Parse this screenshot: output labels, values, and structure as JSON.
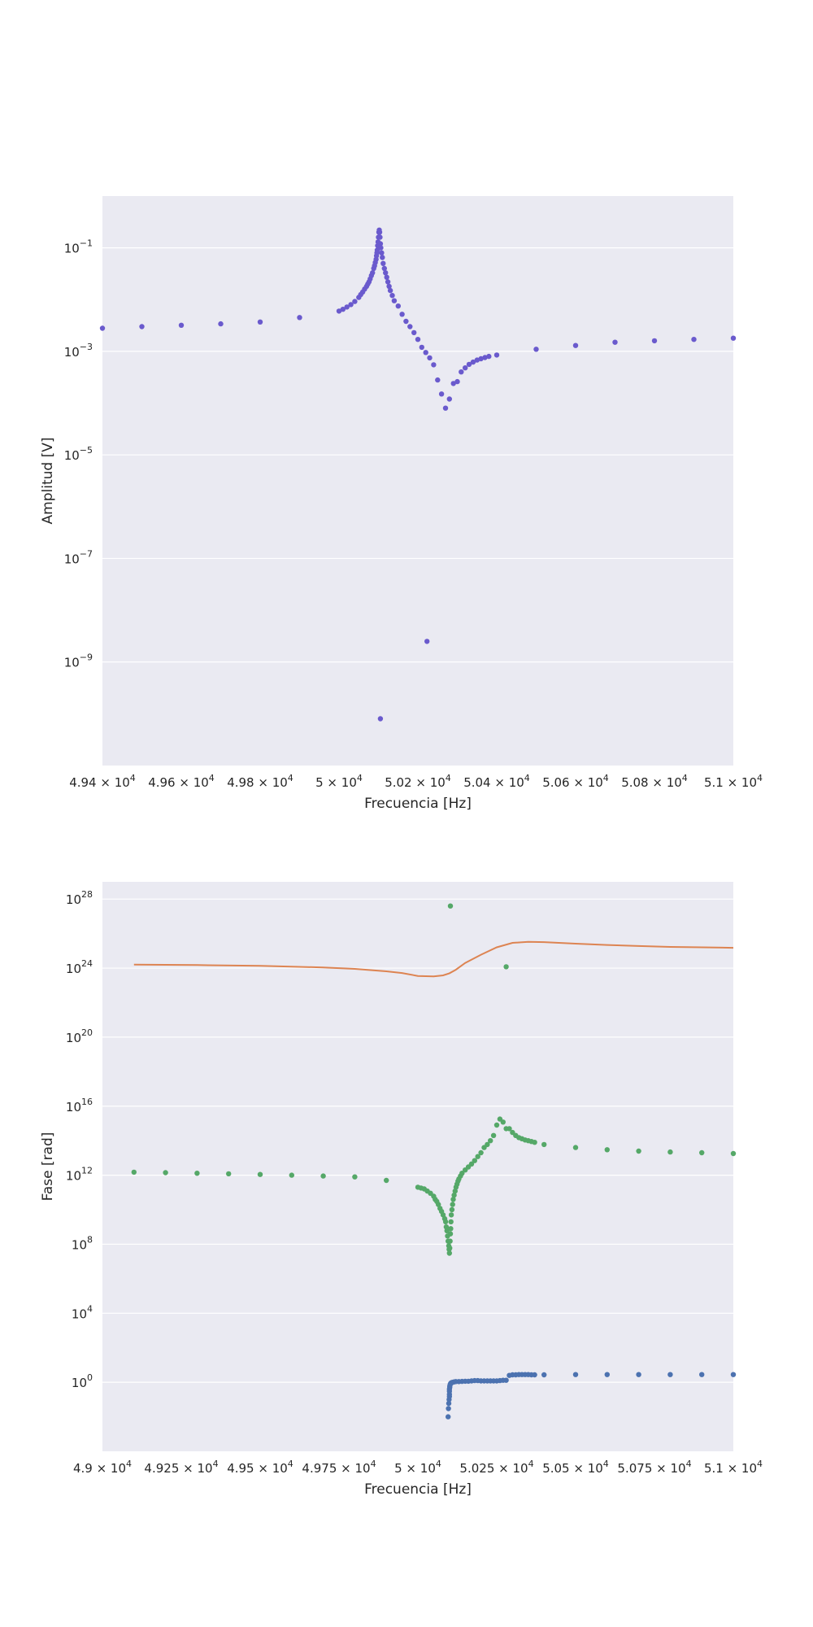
{
  "chart_data": [
    {
      "type": "scatter",
      "xlabel": "Frecuencia [Hz]",
      "ylabel": "Amplitud [V]",
      "xlim": [
        49400,
        51000
      ],
      "y_scale": "log",
      "ylim": [
        1e-11,
        1
      ],
      "grid": true,
      "colors": {
        "plot_bg": "#eaeaf2",
        "grid": "#ffffff",
        "points": "#6a5acd"
      },
      "x_ticks": [
        {
          "value": 49400,
          "mant": "4.94",
          "exp": "4"
        },
        {
          "value": 49600,
          "mant": "4.96",
          "exp": "4"
        },
        {
          "value": 49800,
          "mant": "4.98",
          "exp": "4"
        },
        {
          "value": 50000,
          "mant": "5",
          "exp": "4"
        },
        {
          "value": 50200,
          "mant": "5.02",
          "exp": "4"
        },
        {
          "value": 50400,
          "mant": "5.04",
          "exp": "4"
        },
        {
          "value": 50600,
          "mant": "5.06",
          "exp": "4"
        },
        {
          "value": 50800,
          "mant": "5.08",
          "exp": "4"
        },
        {
          "value": 51000,
          "mant": "5.1",
          "exp": "4"
        }
      ],
      "y_ticks": [
        {
          "value": 0.1,
          "base": "10",
          "exp": "−1"
        },
        {
          "value": 0.001,
          "base": "10",
          "exp": "−3"
        },
        {
          "value": 1e-05,
          "base": "10",
          "exp": "−5"
        },
        {
          "value": 1e-07,
          "base": "10",
          "exp": "−7"
        },
        {
          "value": 1e-09,
          "base": "10",
          "exp": "−9"
        }
      ],
      "series": [
        {
          "color": "#6a5acd",
          "x": [
            49400,
            49500,
            49600,
            49700,
            49800,
            49900,
            50000,
            50010,
            50020,
            50030,
            50040,
            50050,
            50055,
            50060,
            50065,
            50070,
            50073,
            50076,
            50079,
            50082,
            50085,
            50088,
            50090,
            50092,
            50094,
            50095,
            50096,
            50097,
            50098,
            50099,
            50100,
            50101,
            50102,
            50103,
            50104,
            50105,
            50106,
            50108,
            50110,
            50112,
            50115,
            50118,
            50121,
            50124,
            50127,
            50130,
            50135,
            50140,
            50150,
            50160,
            50170,
            50180,
            50190,
            50200,
            50210,
            50220,
            50230,
            50240,
            50250,
            50260,
            50270,
            50280,
            50290,
            50300,
            50310,
            50320,
            50330,
            50340,
            50350,
            50360,
            50370,
            50380,
            50400,
            50500,
            50600,
            50700,
            50800,
            50900,
            51000,
            50223,
            50105
          ],
          "y": [
            0.0028,
            0.003,
            0.0032,
            0.0034,
            0.0037,
            0.0045,
            0.006,
            0.0065,
            0.0072,
            0.008,
            0.0092,
            0.011,
            0.0125,
            0.014,
            0.016,
            0.018,
            0.02,
            0.022,
            0.025,
            0.029,
            0.033,
            0.04,
            0.045,
            0.052,
            0.06,
            0.07,
            0.08,
            0.09,
            0.11,
            0.13,
            0.16,
            0.2,
            0.22,
            0.2,
            0.16,
            0.12,
            0.1,
            0.08,
            0.065,
            0.05,
            0.04,
            0.033,
            0.027,
            0.022,
            0.018,
            0.015,
            0.012,
            0.0095,
            0.0075,
            0.0052,
            0.0038,
            0.003,
            0.0023,
            0.0017,
            0.0012,
            0.00095,
            0.00075,
            0.00055,
            0.00028,
            0.00015,
            8e-05,
            0.00012,
            0.00024,
            0.00026,
            0.0004,
            0.00048,
            0.00056,
            0.00062,
            0.00068,
            0.00072,
            0.00076,
            0.0008,
            0.00085,
            0.0011,
            0.0013,
            0.0015,
            0.0016,
            0.0017,
            0.0018,
            2.5e-09,
            8e-11
          ]
        }
      ]
    },
    {
      "type": "scatter",
      "xlabel": "Frecuencia [Hz]",
      "ylabel": "Fase [rad]",
      "xlim": [
        49000,
        51000
      ],
      "y_scale": "log",
      "ylim": [
        0.0001,
        1e+29
      ],
      "grid": true,
      "colors": {
        "plot_bg": "#eaeaf2",
        "grid": "#ffffff",
        "green": "#55a868",
        "blue": "#4c72b0",
        "orange": "#dd8452"
      },
      "x_ticks": [
        {
          "value": 49000,
          "mant": "4.9",
          "exp": "4"
        },
        {
          "value": 49250,
          "mant": "4.925",
          "exp": "4"
        },
        {
          "value": 49500,
          "mant": "4.95",
          "exp": "4"
        },
        {
          "value": 49750,
          "mant": "4.975",
          "exp": "4"
        },
        {
          "value": 50000,
          "mant": "5",
          "exp": "4"
        },
        {
          "value": 50250,
          "mant": "5.025",
          "exp": "4"
        },
        {
          "value": 50500,
          "mant": "5.05",
          "exp": "4"
        },
        {
          "value": 50750,
          "mant": "5.075",
          "exp": "4"
        },
        {
          "value": 51000,
          "mant": "5.1",
          "exp": "4"
        }
      ],
      "y_ticks": [
        {
          "value": 1e+28,
          "base": "10",
          "exp": "28"
        },
        {
          "value": 1e+24,
          "base": "10",
          "exp": "24"
        },
        {
          "value": 1e+20,
          "base": "10",
          "exp": "20"
        },
        {
          "value": 1e+16,
          "base": "10",
          "exp": "16"
        },
        {
          "value": 1000000000000.0,
          "base": "10",
          "exp": "12"
        },
        {
          "value": 100000000.0,
          "base": "10",
          "exp": "8"
        },
        {
          "value": 10000,
          "base": "10",
          "exp": "4"
        },
        {
          "value": 1,
          "base": "10",
          "exp": "0"
        }
      ],
      "series": [
        {
          "kind": "line",
          "color": "#dd8452",
          "x": [
            49100,
            49300,
            49500,
            49700,
            49800,
            49900,
            49950,
            50000,
            50050,
            50080,
            50100,
            50120,
            50150,
            50200,
            50250,
            50300,
            50350,
            50400,
            50500,
            50600,
            50700,
            50800,
            50900,
            51000
          ],
          "y": [
            1.6e+24,
            1.5e+24,
            1.35e+24,
            1.1e+24,
            9e+23,
            6.5e+23,
            5.2e+23,
            3.5e+23,
            3.3e+23,
            3.8e+23,
            5e+23,
            8e+23,
            2e+24,
            6e+24,
            1.6e+25,
            2.9e+25,
            3.3e+25,
            3.2e+25,
            2.6e+25,
            2.2e+25,
            1.9e+25,
            1.7e+25,
            1.6e+25,
            1.5e+25
          ]
        },
        {
          "kind": "scatter",
          "color": "#55a868",
          "x": [
            49100,
            49200,
            49300,
            49400,
            49500,
            49600,
            49700,
            49800,
            49900,
            50000,
            50010,
            50020,
            50030,
            50040,
            50050,
            50055,
            50060,
            50065,
            50070,
            50075,
            50080,
            50085,
            50088,
            50090,
            50092,
            50094,
            50096,
            50098,
            50099,
            50100,
            50101,
            50102,
            50103,
            50104,
            50105,
            50106,
            50108,
            50110,
            50112,
            50115,
            50118,
            50121,
            50124,
            50127,
            50130,
            50135,
            50140,
            50150,
            50160,
            50170,
            50180,
            50190,
            50200,
            50210,
            50220,
            50230,
            50240,
            50250,
            50260,
            50270,
            50280,
            50290,
            50300,
            50310,
            50320,
            50330,
            50340,
            50350,
            50360,
            50370,
            50400,
            50500,
            50600,
            50700,
            50800,
            50900,
            51000,
            50103,
            50280
          ],
          "y": [
            1500000000000.0,
            1400000000000.0,
            1300000000000.0,
            1200000000000.0,
            1100000000000.0,
            1000000000000.0,
            900000000000.0,
            800000000000.0,
            500000000000.0,
            200000000000.0,
            180000000000.0,
            160000000000.0,
            120000000000.0,
            90000000000.0,
            60000000000.0,
            40000000000.0,
            30000000000.0,
            20000000000.0,
            12000000000.0,
            8000000000.0,
            5000000000.0,
            3000000000.0,
            2000000000.0,
            1000000000.0,
            600000000.0,
            300000000.0,
            150000000.0,
            80000000.0,
            50000000.0,
            30000000.0,
            60000000.0,
            150000000.0,
            400000000.0,
            800000000.0,
            2000000000.0,
            5000000000.0,
            10000000000.0,
            20000000000.0,
            40000000000.0,
            70000000000.0,
            120000000000.0,
            200000000000.0,
            300000000000.0,
            450000000000.0,
            600000000000.0,
            900000000000.0,
            1300000000000.0,
            2000000000000.0,
            3000000000000.0,
            4500000000000.0,
            7000000000000.0,
            12000000000000.0,
            20000000000000.0,
            40000000000000.0,
            60000000000000.0,
            100000000000000.0,
            200000000000000.0,
            800000000000000.0,
            1800000000000000.0,
            1200000000000000.0,
            500000000000000.0,
            500000000000000.0,
            300000000000000.0,
            200000000000000.0,
            150000000000000.0,
            130000000000000.0,
            110000000000000.0,
            100000000000000.0,
            90000000000000.0,
            80000000000000.0,
            60000000000000.0,
            40000000000000.0,
            30000000000000.0,
            25000000000000.0,
            22000000000000.0,
            20000000000000.0,
            18000000000000.0,
            4e+27,
            1.2e+24
          ]
        },
        {
          "kind": "scatter",
          "color": "#4c72b0",
          "x": [
            50096,
            50097,
            50098,
            50099,
            50100,
            50100,
            50100,
            50100,
            50101,
            50101,
            50102,
            50103,
            50104,
            50105,
            50107,
            50110,
            50115,
            50120,
            50130,
            50140,
            50150,
            50160,
            50170,
            50180,
            50190,
            50200,
            50210,
            50220,
            50230,
            50240,
            50250,
            50260,
            50270,
            50280,
            50290,
            50300,
            50310,
            50320,
            50330,
            50340,
            50350,
            50360,
            50370,
            50400,
            50500,
            50600,
            50700,
            50800,
            50900,
            51000
          ],
          "y": [
            0.01,
            0.03,
            0.06,
            0.1,
            0.15,
            0.2,
            0.3,
            0.4,
            0.5,
            0.6,
            0.7,
            0.8,
            0.85,
            0.9,
            0.95,
            1,
            1.05,
            1.1,
            1.1,
            1.12,
            1.15,
            1.15,
            1.2,
            1.25,
            1.25,
            1.2,
            1.2,
            1.2,
            1.2,
            1.2,
            1.2,
            1.25,
            1.3,
            1.3,
            2.5,
            2.7,
            2.7,
            2.8,
            2.8,
            2.8,
            2.8,
            2.7,
            2.7,
            2.7,
            2.8,
            2.8,
            2.8,
            2.8,
            2.8,
            2.8
          ]
        }
      ]
    }
  ]
}
